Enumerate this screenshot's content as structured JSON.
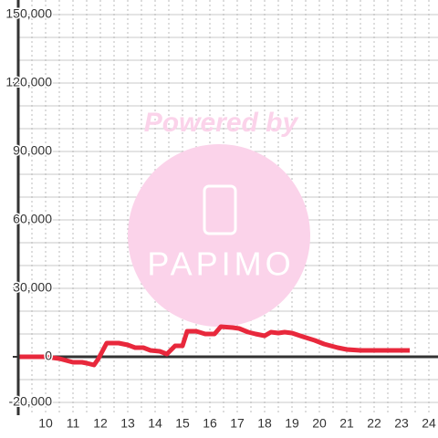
{
  "chart_data": {
    "type": "line",
    "watermark": {
      "text": "Powered by",
      "logo": "PAPIMO"
    },
    "x": [
      9,
      10,
      10.5,
      11,
      11.33,
      11.5,
      11.77,
      11.93,
      12.23,
      12.67,
      13,
      13.27,
      13.57,
      13.83,
      14.17,
      14.43,
      14.73,
      15,
      15.17,
      15.5,
      15.83,
      16.17,
      16.4,
      16.83,
      17.07,
      17.4,
      17.67,
      18,
      18.23,
      18.5,
      18.73,
      19,
      19.4,
      19.83,
      20.17,
      20.67,
      21,
      21.5,
      23.3
    ],
    "values": [
      0,
      0,
      -800,
      -2400,
      -2400,
      -2800,
      -3600,
      -800,
      6000,
      6000,
      5200,
      4000,
      4000,
      2800,
      2400,
      1200,
      4800,
      4800,
      11200,
      11200,
      10000,
      10000,
      13200,
      12800,
      12400,
      10800,
      10000,
      9200,
      10800,
      10400,
      10800,
      10400,
      8800,
      7200,
      5600,
      4000,
      3200,
      2800,
      2800
    ],
    "color": "#e8283c",
    "xlim": [
      9,
      24.3
    ],
    "xticks": [
      10,
      11,
      12,
      13,
      14,
      15,
      16,
      17,
      18,
      19,
      20,
      21,
      22,
      23,
      24
    ],
    "x_minor_ticks": [
      9.5,
      10.5,
      11.5,
      12.5,
      13.5,
      14.5,
      15.5,
      16.5,
      17.5,
      18.5,
      19.5,
      20.5,
      21.5,
      22.5,
      23.5
    ],
    "ylim": [
      -25000,
      150000
    ],
    "yticks": [
      {
        "value": -20000,
        "label": "-20,000"
      },
      0,
      {
        "value": 30000,
        "label": "30,000"
      },
      {
        "value": 60000,
        "label": "60,000"
      },
      {
        "value": 90000,
        "label": "90,000"
      },
      {
        "value": 120000,
        "label": "120,000"
      },
      {
        "value": 150000,
        "label": "150,000"
      }
    ],
    "y_minor_ticks": [
      -10000,
      10000,
      20000,
      40000,
      50000,
      70000,
      80000,
      100000,
      110000,
      130000,
      140000
    ],
    "grid": true
  }
}
